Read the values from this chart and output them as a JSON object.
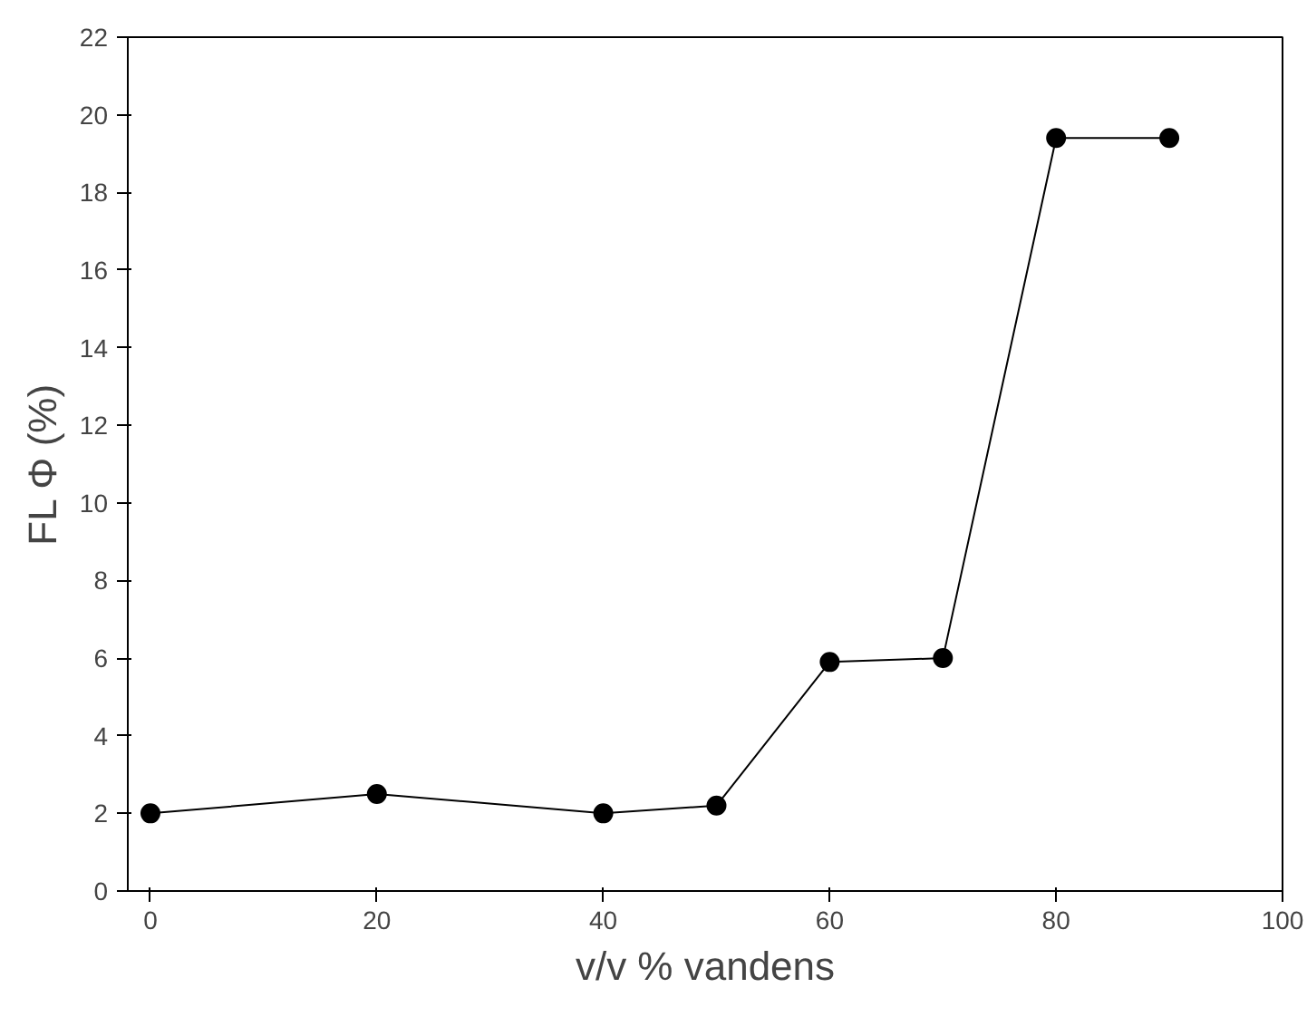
{
  "chart_data": {
    "type": "line",
    "xlabel": "v/v % vandens",
    "ylabel": "FL Φ (%)",
    "x": [
      0,
      20,
      40,
      50,
      60,
      70,
      80,
      90
    ],
    "series": [
      {
        "color": "#000000",
        "values": [
          2,
          2.5,
          2,
          2.2,
          5.9,
          6,
          19.4,
          19.4
        ]
      }
    ],
    "xlim": [
      -2,
      100
    ],
    "ylim": [
      0,
      22
    ],
    "xticks": [
      0,
      20,
      40,
      60,
      80,
      100
    ],
    "yticks": [
      0,
      2,
      4,
      6,
      8,
      10,
      12,
      14,
      16,
      18,
      20,
      22
    ],
    "grid": false,
    "marker": "circle",
    "line_style": "solid"
  }
}
